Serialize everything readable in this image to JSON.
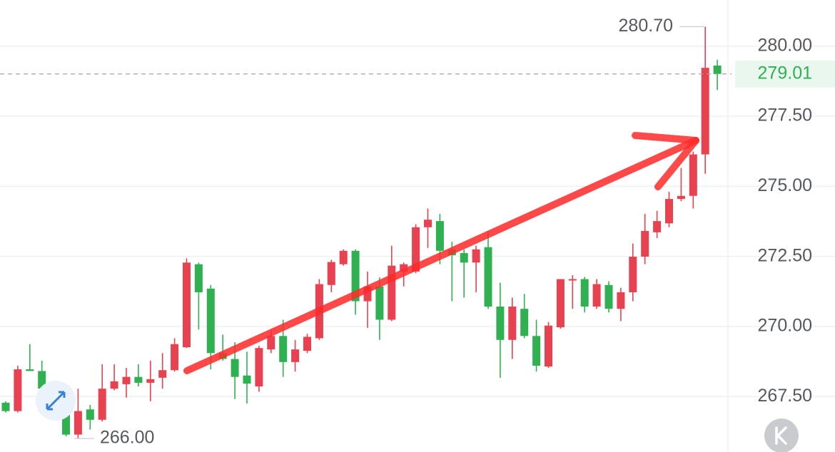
{
  "chart_data": {
    "type": "candlestick",
    "up_color": "#e8414f",
    "down_color": "#2fb152",
    "open": [
      267.28,
      266.98,
      268.47,
      268.41,
      267.72,
      267.86,
      266.14,
      267.04,
      266.67,
      267.78,
      267.94,
      268.2,
      267.99,
      268.17,
      268.44,
      269.26,
      272.22,
      271.35,
      269.05,
      268.84,
      268.25,
      267.86,
      269.18,
      269.66,
      268.73,
      269.13,
      269.58,
      271.48,
      272.22,
      272.7,
      270.9,
      271.43,
      270.24,
      271.96,
      271.96,
      273.54,
      273.76,
      272.75,
      272.62,
      272.28,
      272.83,
      270.71,
      269.52,
      270.63,
      269.66,
      268.57,
      269.97,
      271.64,
      271.69,
      270.71,
      271.48,
      270.63,
      271.22,
      272.49,
      273.36,
      273.68,
      274.55,
      274.66,
      276.14,
      279.31
    ],
    "high": [
      267.33,
      268.6,
      269.37,
      268.78,
      267.99,
      267.86,
      267.78,
      267.2,
      268.65,
      268.65,
      268.52,
      268.65,
      268.78,
      269.05,
      269.58,
      272.43,
      272.28,
      271.48,
      269.71,
      269.44,
      269.1,
      269.31,
      269.84,
      270.24,
      269.52,
      269.74,
      271.69,
      272.38,
      272.75,
      272.75,
      271.96,
      271.75,
      272.88,
      272.28,
      273.65,
      274.21,
      274.02,
      273.02,
      272.75,
      272.88,
      273.41,
      271.56,
      271.03,
      271.16,
      270.24,
      270.16,
      271.69,
      271.83,
      271.77,
      271.69,
      271.61,
      271.38,
      272.96,
      274.02,
      274.13,
      274.81,
      275.66,
      276.24,
      280.7,
      279.52
    ],
    "low": [
      266.93,
      266.93,
      268.41,
      267.41,
      267.06,
      266.08,
      266.0,
      266.32,
      266.61,
      267.72,
      267.46,
      267.86,
      267.33,
      267.78,
      268.39,
      269.23,
      269.89,
      268.47,
      268.78,
      267.41,
      267.25,
      267.67,
      269.05,
      268.2,
      268.39,
      269.05,
      269.52,
      271.22,
      272.17,
      270.42,
      269.95,
      269.52,
      270.19,
      271.43,
      271.9,
      272.8,
      272.22,
      270.9,
      271.03,
      271.22,
      270.63,
      268.17,
      268.84,
      269.58,
      268.39,
      268.52,
      269.92,
      270.63,
      270.5,
      270.63,
      270.5,
      270.19,
      270.9,
      272.22,
      273.15,
      273.54,
      274.47,
      274.21,
      275.45,
      278.44
    ],
    "close": [
      266.98,
      268.47,
      268.41,
      267.78,
      267.86,
      266.14,
      266.98,
      266.67,
      267.78,
      268.04,
      268.2,
      267.99,
      268.12,
      268.44,
      269.37,
      272.28,
      271.22,
      269.05,
      268.84,
      268.2,
      267.96,
      269.23,
      269.66,
      268.73,
      269.18,
      269.63,
      271.51,
      272.3,
      272.7,
      270.9,
      271.43,
      270.24,
      272.17,
      272.22,
      273.54,
      273.81,
      272.7,
      272.54,
      272.28,
      272.75,
      270.71,
      269.52,
      270.71,
      269.66,
      268.6,
      270.03,
      271.69,
      271.69,
      270.71,
      271.51,
      270.63,
      271.22,
      272.49,
      273.41,
      273.76,
      274.55,
      274.66,
      276.14,
      279.23,
      279.01
    ],
    "ylim": [
      265.52,
      281.65
    ],
    "yticks": [
      {
        "value": 267.5,
        "label": "267.50"
      },
      {
        "value": 270,
        "label": "270.00"
      },
      {
        "value": 272.5,
        "label": "272.50"
      },
      {
        "value": 275,
        "label": "275.00"
      },
      {
        "value": 277.5,
        "label": "277.50"
      },
      {
        "value": 280,
        "label": "280.00"
      }
    ],
    "grid": true,
    "last_price": {
      "value": 279.01,
      "label": "279.01"
    },
    "high_marker": {
      "value": 280.7,
      "label": "280.70"
    },
    "low_marker": {
      "value": 266.0,
      "label": "266.00"
    }
  }
}
